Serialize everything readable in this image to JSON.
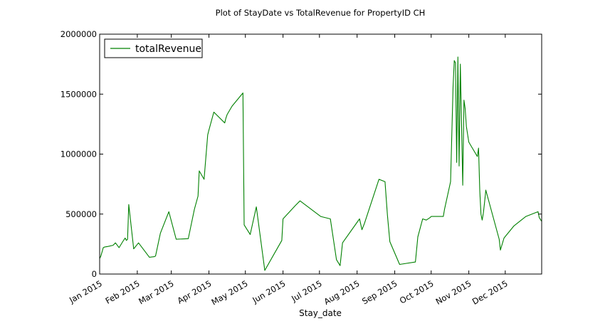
{
  "chart_data": {
    "type": "line",
    "title": "Plot of StayDate vs TotalRevenue for PropertyID CH",
    "xlabel": "Stay_date",
    "ylabel": "",
    "x_type": "date",
    "xlim": [
      "2015-01-01",
      "2015-12-31"
    ],
    "ylim": [
      0,
      2000000
    ],
    "yticks": [
      0,
      500000,
      1000000,
      1500000,
      2000000
    ],
    "ytick_labels": [
      "0",
      "500000",
      "1000000",
      "1500000",
      "2000000"
    ],
    "xticks": [
      "2015-01-01",
      "2015-02-01",
      "2015-03-01",
      "2015-04-01",
      "2015-05-01",
      "2015-06-01",
      "2015-07-01",
      "2015-08-01",
      "2015-09-01",
      "2015-10-01",
      "2015-11-01",
      "2015-12-01"
    ],
    "xtick_labels": [
      "Jan 2015",
      "Feb 2015",
      "Mar 2015",
      "Apr 2015",
      "May 2015",
      "Jun 2015",
      "Jul 2015",
      "Aug 2015",
      "Sep 2015",
      "Oct 2015",
      "Nov 2015",
      "Dec 2015"
    ],
    "legend_position": "top-left",
    "grid": false,
    "series": [
      {
        "name": "totalRevenue",
        "color": "#008000",
        "x": [
          "2015-01-01",
          "2015-01-02",
          "2015-01-04",
          "2015-01-05",
          "2015-01-08",
          "2015-01-12",
          "2015-01-14",
          "2015-01-17",
          "2015-01-20",
          "2015-01-22",
          "2015-01-23",
          "2015-01-24",
          "2015-01-25",
          "2015-01-29",
          "2015-02-02",
          "2015-02-11",
          "2015-02-15",
          "2015-02-16",
          "2015-02-20",
          "2015-02-27",
          "2015-03-05",
          "2015-03-15",
          "2015-03-20",
          "2015-03-23",
          "2015-03-24",
          "2015-03-28",
          "2015-03-31",
          "2015-04-01",
          "2015-04-05",
          "2015-04-14",
          "2015-04-15",
          "2015-04-16",
          "2015-04-20",
          "2015-04-29",
          "2015-04-30",
          "2015-05-05",
          "2015-05-10",
          "2015-05-17",
          "2015-05-31",
          "2015-06-01",
          "2015-06-11",
          "2015-06-15",
          "2015-07-02",
          "2015-07-10",
          "2015-07-15",
          "2015-07-18",
          "2015-07-20",
          "2015-08-03",
          "2015-08-05",
          "2015-08-07",
          "2015-08-19",
          "2015-08-24",
          "2015-08-26",
          "2015-08-28",
          "2015-09-05",
          "2015-09-18",
          "2015-09-20",
          "2015-09-24",
          "2015-09-27",
          "2015-09-30",
          "2015-10-01",
          "2015-10-11",
          "2015-10-12",
          "2015-10-17",
          "2015-10-19",
          "2015-10-20",
          "2015-10-21",
          "2015-10-22",
          "2015-10-23",
          "2015-10-24",
          "2015-10-25",
          "2015-10-26",
          "2015-10-27",
          "2015-10-28",
          "2015-10-29",
          "2015-10-30",
          "2015-11-01",
          "2015-11-08",
          "2015-11-09",
          "2015-11-10",
          "2015-11-11",
          "2015-11-12",
          "2015-11-13",
          "2015-11-14",
          "2015-11-15",
          "2015-11-26",
          "2015-11-27",
          "2015-11-30",
          "2015-12-08",
          "2015-12-18",
          "2015-12-28",
          "2015-12-29",
          "2015-12-31"
        ],
        "y": [
          130000,
          150000,
          220000,
          225000,
          230000,
          240000,
          260000,
          220000,
          270000,
          300000,
          280000,
          290000,
          580000,
          210000,
          260000,
          140000,
          145000,
          150000,
          340000,
          520000,
          290000,
          295000,
          540000,
          650000,
          860000,
          790000,
          1160000,
          1200000,
          1350000,
          1260000,
          1300000,
          1330000,
          1400000,
          1510000,
          410000,
          330000,
          560000,
          30000,
          280000,
          460000,
          570000,
          610000,
          480000,
          460000,
          120000,
          70000,
          260000,
          460000,
          370000,
          420000,
          790000,
          770000,
          490000,
          270000,
          80000,
          100000,
          310000,
          460000,
          450000,
          470000,
          480000,
          480000,
          540000,
          770000,
          1560000,
          1780000,
          1760000,
          930000,
          1810000,
          900000,
          1750000,
          1250000,
          740000,
          1450000,
          1380000,
          1230000,
          1100000,
          980000,
          1050000,
          700000,
          500000,
          450000,
          510000,
          600000,
          700000,
          290000,
          200000,
          300000,
          400000,
          480000,
          520000,
          470000,
          440000
        ]
      }
    ]
  }
}
